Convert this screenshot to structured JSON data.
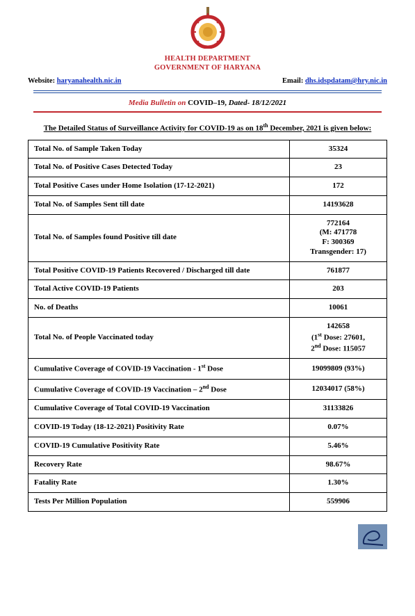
{
  "header": {
    "emblem_color_outer": "#c1272d",
    "emblem_color_inner": "#efb84a",
    "dept": "HEALTH DEPARTMENT",
    "gov": "GOVERNMENT OF HARYANA",
    "website_label": "Website: ",
    "website_link": "haryanahealth.nic.in",
    "email_label": "Email: ",
    "email_link": "dhs.idspdatam@hry.nic.in"
  },
  "bulletin": {
    "prefix_red": "Media Bulletin on",
    "mid_black": " COVID–19, ",
    "suffix_black_italic": "Dated- 18/12/2021"
  },
  "section_title": {
    "pre": "The Detailed Status of Surveillance Activity for COVID-19 as on 18",
    "sup": "th",
    "post": " December, 2021 is given below:"
  },
  "rows": [
    {
      "label": "Total No. of Sample Taken Today",
      "value": "35324"
    },
    {
      "label": "Total No. of Positive Cases Detected Today",
      "value": "23"
    },
    {
      "label": "Total Positive Cases under Home Isolation (17-12-2021)",
      "value": "172"
    },
    {
      "label": "Total No. of Samples Sent till date",
      "value": "14193628"
    },
    {
      "label": "Total No. of Samples found Positive till date",
      "value": "772164\n(M: 471778\nF: 300369\nTransgender: 17)"
    },
    {
      "label": "Total Positive COVID-19 Patients Recovered / Discharged till date",
      "value": "761877"
    },
    {
      "label": "Total Active COVID-19 Patients",
      "value": "203"
    },
    {
      "label": "No. of Deaths",
      "value": "10061"
    },
    {
      "label": "Total No. of People Vaccinated today",
      "value_html": "142658\n(1<sup>st</sup> Dose: 27601,\n2<sup>nd</sup> Dose: 115057"
    },
    {
      "label_html": "Cumulative Coverage of COVID-19 Vaccination - 1<sup>st</sup> Dose",
      "value": "19099809 (93%)"
    },
    {
      "label_html": "Cumulative Coverage of COVID-19 Vaccination – 2<sup>nd</sup> Dose",
      "value": "12034017 (58%)"
    },
    {
      "label": "Cumulative Coverage of Total COVID-19 Vaccination",
      "value": "31133826"
    },
    {
      "label": "COVID-19 Today (18-12-2021) Positivity Rate",
      "value": "0.07%"
    },
    {
      "label": "COVID-19 Cumulative Positivity Rate",
      "value": "5.46%"
    },
    {
      "label": "Recovery Rate",
      "value": "98.67%"
    },
    {
      "label": "Fatality Rate",
      "value": "1.30%"
    },
    {
      "label": "Tests Per Million Population",
      "value": "559906"
    }
  ],
  "signature": {
    "stroke": "#12285e",
    "bg": "#7390b5"
  }
}
